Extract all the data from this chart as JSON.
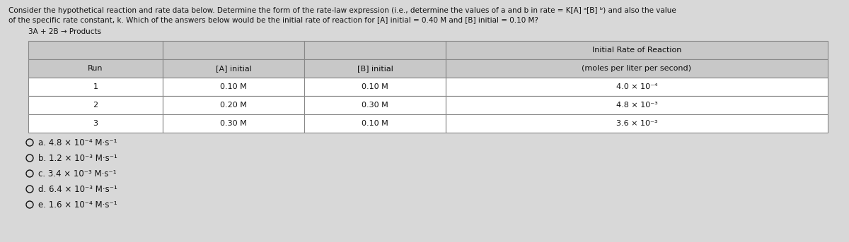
{
  "title_line1": "Consider the hypothetical reaction and rate data below. Determine the form of the rate-law expression (i.e., determine the values of a and b in rate = K[A] ᵃ[B] ᵇ) and also the value",
  "title_line2": "of the specific rate constant, k. Which of the answers below would be the initial rate of reaction for [A] initial = 0.40 M and [B] initial = 0.10 M?",
  "reaction": "3A + 2B → Products",
  "col_headers_row1": [
    "",
    "",
    "",
    "Initial Rate of Reaction"
  ],
  "col_headers_row2": [
    "Run",
    "[A] initial",
    "[B] initial",
    "(moles per liter per second)"
  ],
  "table_rows": [
    [
      "1",
      "0.10 M",
      "0.10 M",
      "4.0 × 10⁻⁴"
    ],
    [
      "2",
      "0.20 M",
      "0.30 M",
      "4.8 × 10⁻³"
    ],
    [
      "3",
      "0.30 M",
      "0.10 M",
      "3.6 × 10⁻³"
    ]
  ],
  "choices": [
    "a. 4.8 × 10⁻⁴ M·s⁻¹",
    "b. 1.2 × 10⁻³ M·s⁻¹",
    "c. 3.4 × 10⁻³ M·s⁻¹",
    "d. 6.4 × 10⁻³ M·s⁻¹",
    "e. 1.6 × 10⁻⁴ M·s⁻¹"
  ],
  "bg_color": "#d8d8d8",
  "table_bg": "#ffffff",
  "header_bg": "#c8c8c8",
  "border_color": "#888888",
  "text_color": "#111111",
  "font_size_title": 7.5,
  "font_size_table": 8.0,
  "font_size_choices": 8.5
}
